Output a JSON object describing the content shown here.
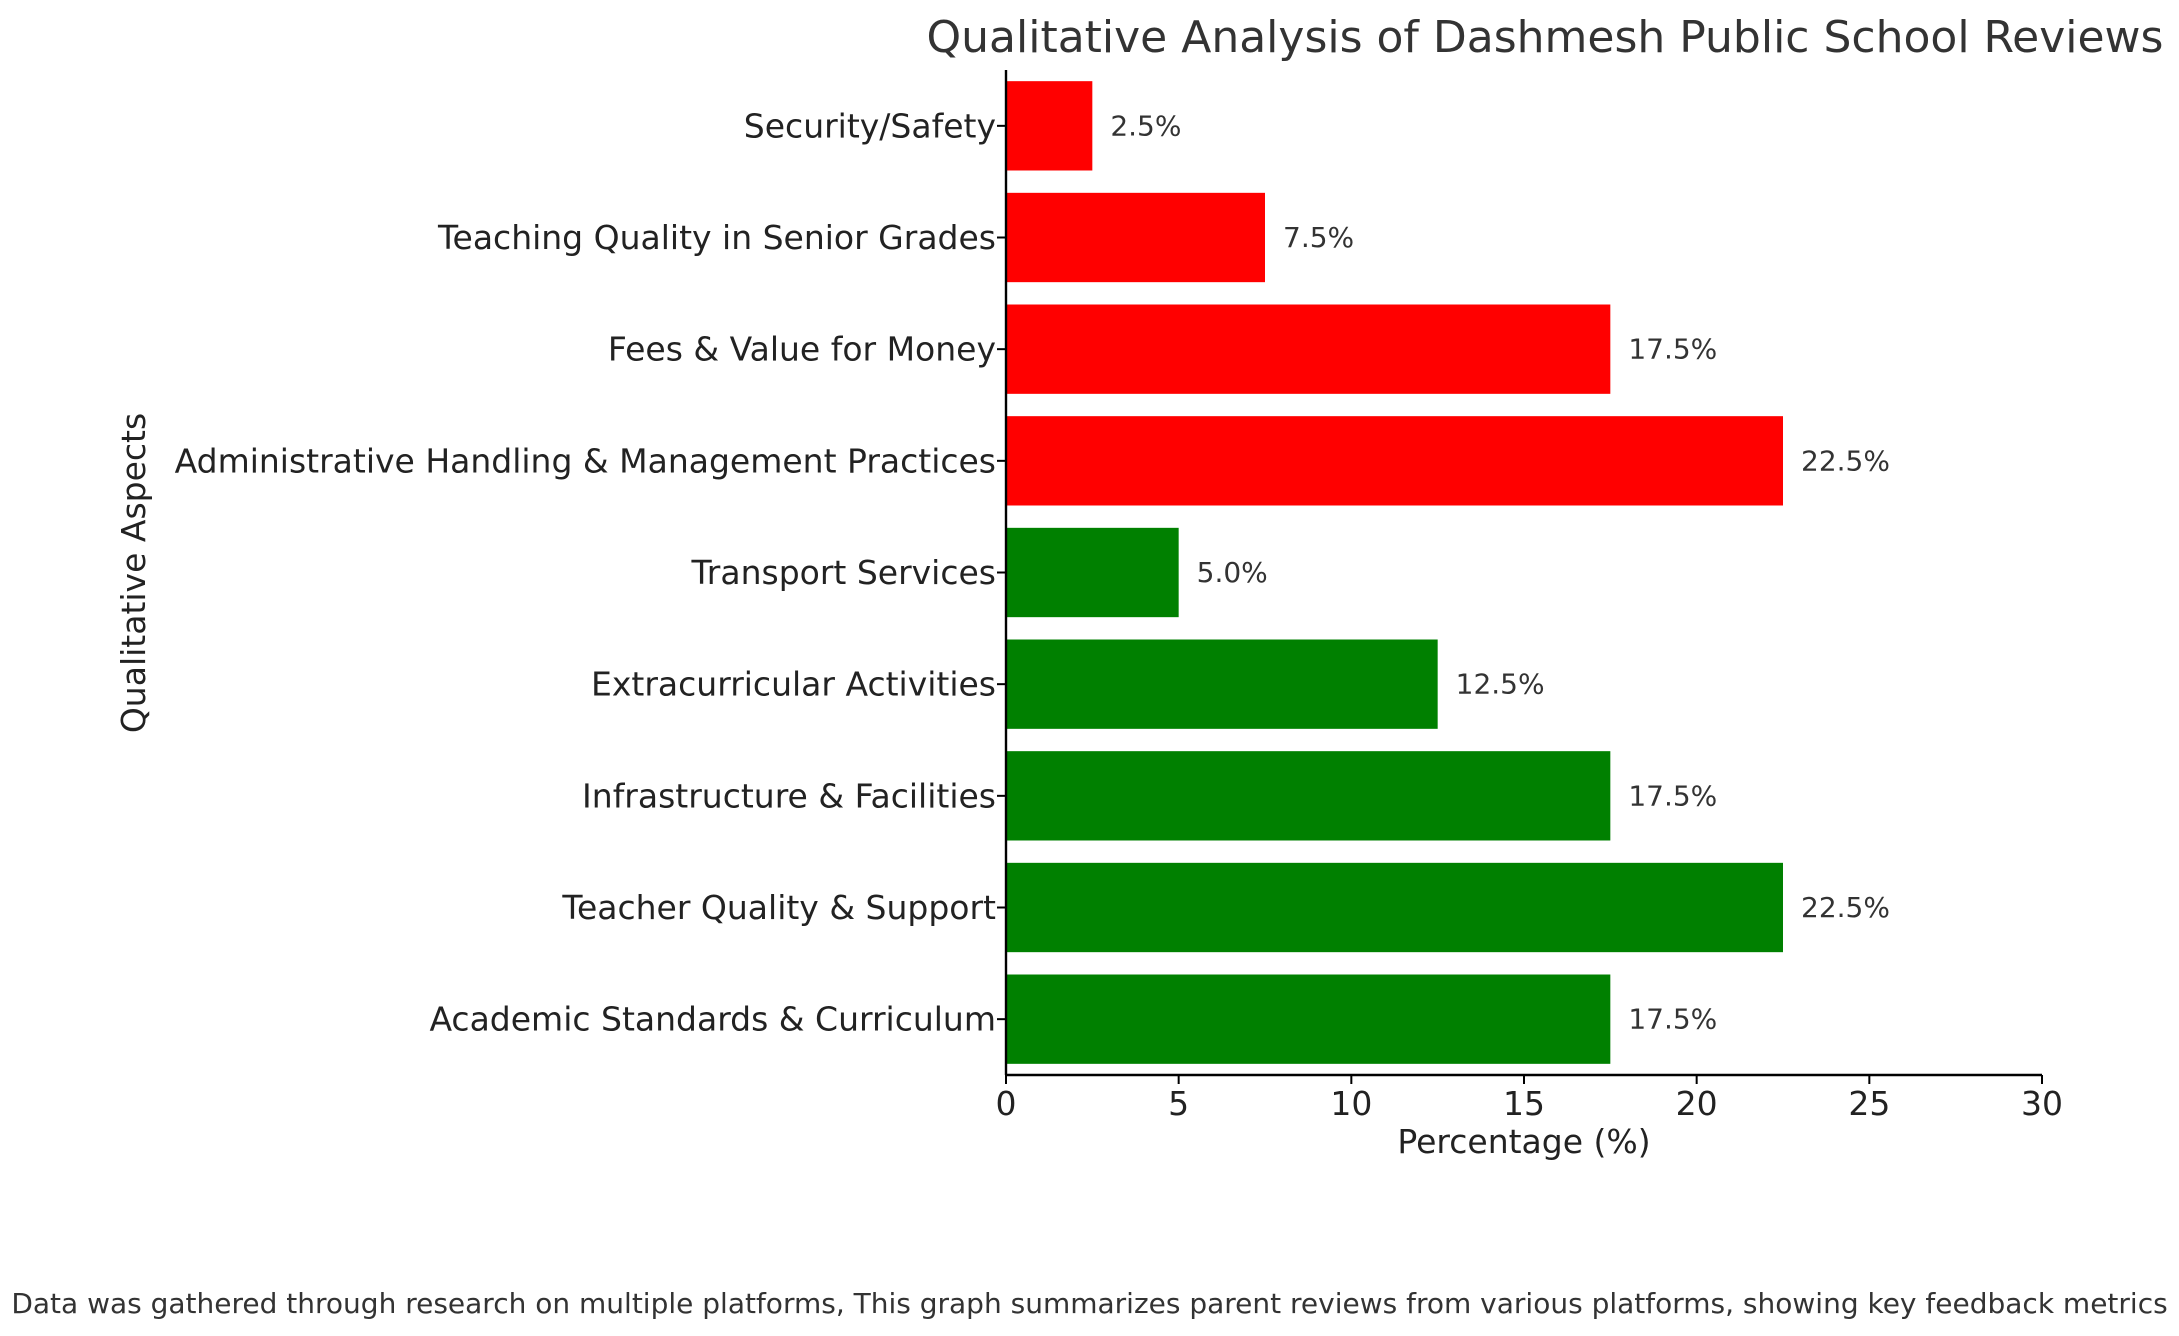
{
  "chart_data": {
    "type": "bar",
    "orientation": "horizontal",
    "title": "Qualitative Analysis of Dashmesh Public School Reviews",
    "xlabel": "Percentage (%)",
    "ylabel": "Qualitative Aspects",
    "xlim": [
      0,
      30
    ],
    "xticks": [
      0,
      5,
      10,
      15,
      20,
      25,
      30
    ],
    "grid": false,
    "categories": [
      "Academic Standards & Curriculum",
      "Teacher Quality & Support",
      "Infrastructure & Facilities",
      "Extracurricular Activities",
      "Transport Services",
      "Administrative Handling & Management Practices",
      "Fees & Value for Money",
      "Teaching Quality in Senior Grades",
      "Security/Safety"
    ],
    "values": [
      17.5,
      22.5,
      17.5,
      12.5,
      5.0,
      22.5,
      17.5,
      7.5,
      2.5
    ],
    "data_labels": [
      "17.5%",
      "22.5%",
      "17.5%",
      "12.5%",
      "5.0%",
      "22.5%",
      "17.5%",
      "7.5%",
      "2.5%"
    ],
    "colors": [
      "#008000",
      "#008000",
      "#008000",
      "#008000",
      "#008000",
      "#ff0000",
      "#ff0000",
      "#ff0000",
      "#ff0000"
    ]
  },
  "footnote": "Data was gathered through research on multiple platforms, This graph summarizes parent reviews from various platforms, showing key feedback metrics"
}
